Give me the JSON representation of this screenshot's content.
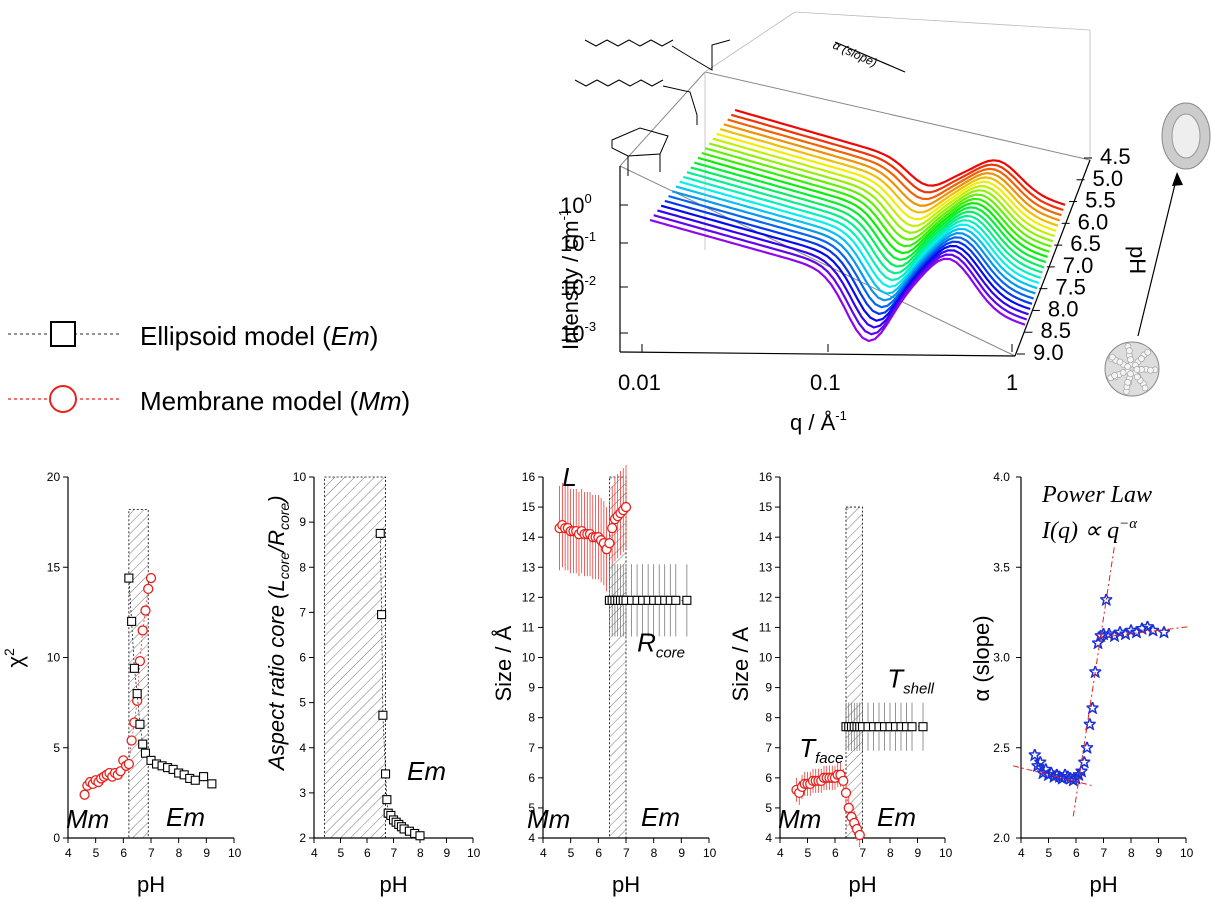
{
  "legend": {
    "em_label": "Ellipsoid model (",
    "em_abbr": "Em",
    "mm_label": "Membrane model (",
    "mm_abbr": "Mm",
    "close": ")"
  },
  "colors": {
    "em": "#000000",
    "mm": "#e8211c",
    "power": "#1b2fd6",
    "fit": "#e8211c"
  },
  "top_chart": {
    "ylabel": "Intensity / cm",
    "ylabel_sup": "-1",
    "xlabel": "q / Å",
    "xlabel_sup": "-1",
    "zlabel": "pH",
    "slope_label": "α (slope)",
    "y_ticks": [
      {
        "base": "10",
        "exp": "0"
      },
      {
        "base": "10",
        "exp": "-1"
      },
      {
        "base": "10",
        "exp": "-2"
      },
      {
        "base": "10",
        "exp": "-3"
      }
    ],
    "x_ticks": [
      "0.01",
      "0.1",
      "1"
    ],
    "z_ticks": [
      "4.5",
      "5.0",
      "5.5",
      "6.0",
      "6.5",
      "7.0",
      "7.5",
      "8.0",
      "8.5",
      "9.0"
    ]
  },
  "chart_data": [
    {
      "type": "scatter",
      "xlabel": "pH",
      "ylabel": "χ²",
      "xlim": [
        4,
        10
      ],
      "ylim": [
        0,
        20
      ],
      "xticks": [
        "4",
        "5",
        "6",
        "7",
        "8",
        "9",
        "10"
      ],
      "yticks": [
        "0",
        "5",
        "10",
        "15",
        "20"
      ],
      "labels": {
        "left": "Mm",
        "right": "Em"
      },
      "series": [
        {
          "marker": "circle",
          "x": [
            4.6,
            4.7,
            4.8,
            4.9,
            5.0,
            5.1,
            5.2,
            5.3,
            5.4,
            5.5,
            5.6,
            5.7,
            5.8,
            5.9,
            6.0,
            6.1,
            6.2,
            6.3,
            6.4,
            6.5,
            6.6,
            6.7,
            6.8,
            6.9,
            7.0
          ],
          "y": [
            2.4,
            2.9,
            3.1,
            3.0,
            3.2,
            3.1,
            3.3,
            3.4,
            3.5,
            3.6,
            3.4,
            3.6,
            3.5,
            3.7,
            4.3,
            4.0,
            4.1,
            5.4,
            6.4,
            7.6,
            9.8,
            11.5,
            12.6,
            13.8,
            14.4
          ]
        },
        {
          "marker": "square",
          "x": [
            6.2,
            6.3,
            6.4,
            6.5,
            6.6,
            6.7,
            6.8,
            7.0,
            7.2,
            7.4,
            7.6,
            7.8,
            8.0,
            8.2,
            8.4,
            8.6,
            8.9,
            9.2
          ],
          "y": [
            14.4,
            12.0,
            9.4,
            8.0,
            6.3,
            5.2,
            4.7,
            4.3,
            4.1,
            4.0,
            3.9,
            3.8,
            3.6,
            3.5,
            3.3,
            3.2,
            3.4,
            3.0
          ]
        }
      ]
    },
    {
      "type": "scatter",
      "xlabel": "pH",
      "ylabel": "Aspect ratio core (L/R)",
      "xlim": [
        4,
        10
      ],
      "ylim": [
        2,
        10
      ],
      "xticks": [
        "4",
        "5",
        "6",
        "7",
        "8",
        "9",
        "10"
      ],
      "yticks": [
        "2",
        "3",
        "4",
        "5",
        "6",
        "7",
        "8",
        "9",
        "10"
      ],
      "labels": {
        "right": "Em"
      },
      "series": [
        {
          "marker": "square",
          "x": [
            6.5,
            6.55,
            6.6,
            6.7,
            6.75,
            6.8,
            6.9,
            7.0,
            7.1,
            7.2,
            7.3,
            7.4,
            7.6,
            7.8,
            8.0
          ],
          "y": [
            8.75,
            6.95,
            4.72,
            3.42,
            2.85,
            2.55,
            2.5,
            2.4,
            2.35,
            2.3,
            2.25,
            2.2,
            2.15,
            2.1,
            2.05
          ]
        }
      ]
    },
    {
      "type": "scatter",
      "xlabel": "pH",
      "ylabel": "Size / Å",
      "xlim": [
        4,
        10
      ],
      "ylim": [
        4,
        16
      ],
      "xticks": [
        "4",
        "5",
        "6",
        "7",
        "8",
        "9",
        "10"
      ],
      "yticks": [
        "4",
        "5",
        "6",
        "7",
        "8",
        "9",
        "10",
        "11",
        "12",
        "13",
        "14",
        "15",
        "16"
      ],
      "labels": {
        "left": "Mm",
        "right": "Em",
        "L": "L",
        "R": "R",
        "R_sub": "core"
      },
      "series": [
        {
          "marker": "circle",
          "x": [
            4.6,
            4.7,
            4.8,
            4.9,
            5.0,
            5.1,
            5.2,
            5.3,
            5.4,
            5.5,
            5.6,
            5.7,
            5.8,
            5.9,
            6.0,
            6.1,
            6.2,
            6.3,
            6.4,
            6.5,
            6.6,
            6.7,
            6.8,
            6.9,
            7.0
          ],
          "y": [
            14.3,
            14.4,
            14.3,
            14.3,
            14.2,
            14.2,
            14.2,
            14.1,
            14.2,
            14.1,
            14.1,
            14.1,
            14.0,
            14.0,
            14.0,
            13.9,
            13.8,
            13.6,
            13.8,
            14.3,
            14.6,
            14.7,
            14.8,
            14.9,
            15.0
          ]
        },
        {
          "marker": "square",
          "x": [
            6.4,
            6.5,
            6.6,
            6.7,
            6.8,
            6.9,
            7.0,
            7.2,
            7.4,
            7.6,
            7.8,
            8.0,
            8.2,
            8.4,
            8.6,
            8.8,
            9.2
          ],
          "y": [
            11.9,
            11.9,
            11.9,
            11.9,
            11.9,
            11.9,
            11.9,
            11.9,
            11.9,
            11.9,
            11.9,
            11.9,
            11.9,
            11.9,
            11.9,
            11.9,
            11.9
          ]
        }
      ]
    },
    {
      "type": "scatter",
      "xlabel": "pH",
      "ylabel": "Size / A",
      "xlim": [
        4,
        10
      ],
      "ylim": [
        4,
        16
      ],
      "xticks": [
        "4",
        "5",
        "6",
        "7",
        "8",
        "9",
        "10"
      ],
      "yticks": [
        "4",
        "5",
        "6",
        "7",
        "8",
        "9",
        "10",
        "11",
        "12",
        "13",
        "14",
        "15",
        "16"
      ],
      "labels": {
        "left": "Mm",
        "right": "Em",
        "T": "T",
        "face": "face",
        "shell": "shell"
      },
      "series": [
        {
          "marker": "circle",
          "x": [
            4.6,
            4.7,
            4.8,
            4.9,
            5.0,
            5.1,
            5.2,
            5.3,
            5.4,
            5.5,
            5.6,
            5.7,
            5.8,
            5.9,
            6.0,
            6.1,
            6.2,
            6.3,
            6.4,
            6.5,
            6.6,
            6.7,
            6.8,
            6.9
          ],
          "y": [
            5.6,
            5.5,
            5.7,
            5.8,
            5.8,
            5.8,
            5.9,
            5.9,
            5.9,
            5.9,
            6.0,
            6.0,
            6.0,
            6.0,
            6.0,
            6.1,
            6.1,
            5.9,
            5.5,
            5.0,
            4.7,
            4.5,
            4.3,
            4.1
          ]
        },
        {
          "marker": "square",
          "x": [
            6.4,
            6.5,
            6.6,
            6.7,
            6.8,
            6.9,
            7.0,
            7.2,
            7.4,
            7.6,
            7.8,
            8.0,
            8.2,
            8.4,
            8.6,
            8.8,
            9.2
          ],
          "y": [
            7.7,
            7.7,
            7.7,
            7.7,
            7.7,
            7.7,
            7.7,
            7.7,
            7.7,
            7.7,
            7.7,
            7.7,
            7.7,
            7.7,
            7.7,
            7.7,
            7.7
          ]
        }
      ]
    },
    {
      "type": "scatter",
      "xlabel": "pH",
      "ylabel": "α (slope)",
      "xlim": [
        4,
        10
      ],
      "ylim": [
        2.0,
        4.0
      ],
      "xticks": [
        "4",
        "5",
        "6",
        "7",
        "8",
        "9",
        "10"
      ],
      "yticks": [
        "2.0",
        "2.5",
        "3.0",
        "3.5",
        "4.0"
      ],
      "title_line1": "Power Law",
      "title_line2": "I(q) ∝ q",
      "title_sup": "−α",
      "series": [
        {
          "marker": "star",
          "x": [
            4.5,
            4.6,
            4.7,
            4.8,
            4.9,
            5.0,
            5.1,
            5.2,
            5.3,
            5.4,
            5.5,
            5.6,
            5.7,
            5.8,
            5.9,
            6.0,
            6.1,
            6.2,
            6.3,
            6.4,
            6.5,
            6.6,
            6.7,
            6.8,
            6.9,
            7.0,
            7.1,
            7.2,
            7.4,
            7.6,
            7.8,
            8.0,
            8.2,
            8.4,
            8.6,
            8.8,
            9.2
          ],
          "y": [
            2.46,
            2.4,
            2.42,
            2.36,
            2.38,
            2.35,
            2.36,
            2.34,
            2.35,
            2.34,
            2.33,
            2.35,
            2.34,
            2.33,
            2.32,
            2.33,
            2.35,
            2.37,
            2.42,
            2.5,
            2.63,
            2.72,
            2.92,
            3.08,
            3.12,
            3.13,
            3.32,
            3.13,
            3.12,
            3.14,
            3.13,
            3.15,
            3.14,
            3.16,
            3.17,
            3.15,
            3.14
          ]
        }
      ]
    }
  ]
}
